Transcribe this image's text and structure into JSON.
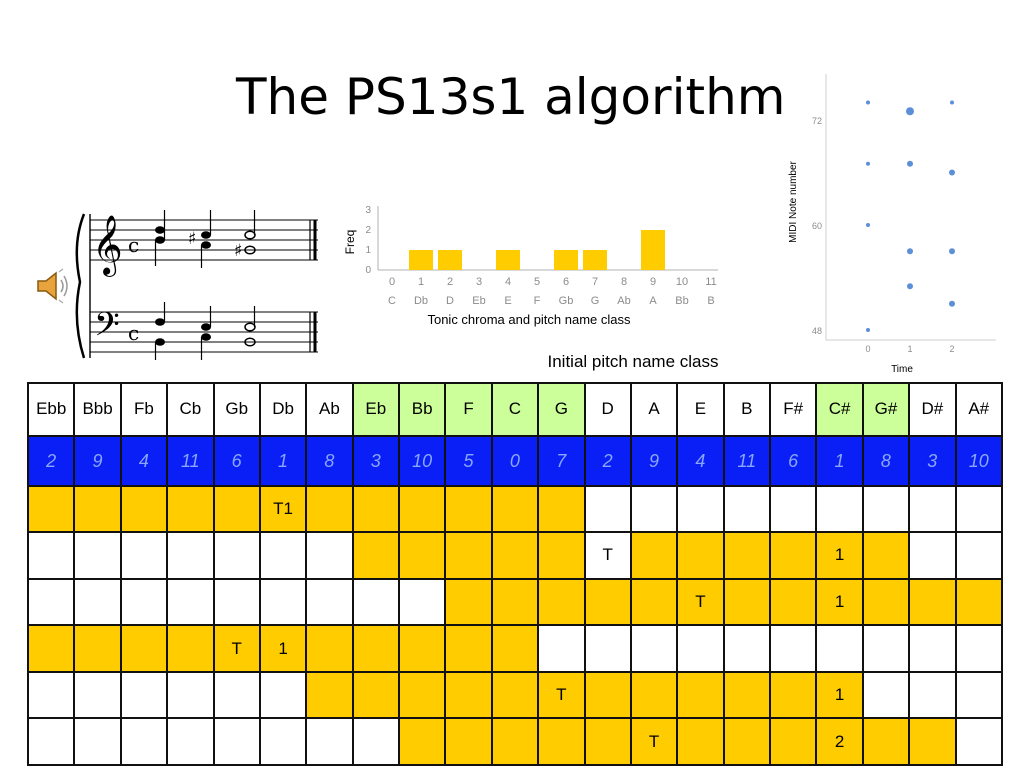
{
  "title": "The PS13s1 algorithm",
  "caption": "Initial pitch name class",
  "colors": {
    "fill": "#ffcc00",
    "header_green": "#ccff99",
    "index_row_bg": "#0a1ff5",
    "index_row_text": "#8aa7ff",
    "marker": "#5b8fd8"
  },
  "speaker_icon": "speaker-icon",
  "score": {
    "clefs": [
      "treble-clef",
      "bass-clef"
    ],
    "time_signature": "c"
  },
  "histogram": {
    "ylabel": "Freq",
    "xlabel": "Tonic chroma and pitch name class",
    "yticks": [
      "0",
      "1",
      "2",
      "3"
    ],
    "numbers": [
      "0",
      "1",
      "2",
      "3",
      "4",
      "5",
      "6",
      "7",
      "8",
      "9",
      "10",
      "11"
    ],
    "names": [
      "C",
      "Db",
      "D",
      "Eb",
      "E",
      "F",
      "Gb",
      "G",
      "Ab",
      "A",
      "Bb",
      "B"
    ]
  },
  "scatter": {
    "ylabel": "MIDI Note number",
    "xlabel": "Time",
    "yticks": [
      "72",
      "60",
      "48"
    ],
    "xticks": [
      "0",
      "1",
      "2"
    ]
  },
  "chart_data": [
    {
      "type": "bar",
      "categories": [
        "0",
        "1",
        "2",
        "3",
        "4",
        "5",
        "6",
        "7",
        "8",
        "9",
        "10",
        "11"
      ],
      "category_names": [
        "C",
        "Db",
        "D",
        "Eb",
        "E",
        "F",
        "Gb",
        "G",
        "Ab",
        "A",
        "Bb",
        "B"
      ],
      "values": [
        0,
        1,
        1,
        0,
        1,
        0,
        1,
        1,
        0,
        2,
        0,
        0
      ],
      "ylabel": "Freq",
      "xlabel": "Tonic chroma and pitch name class",
      "ylim": [
        0,
        3
      ]
    },
    {
      "type": "scatter",
      "xlabel": "Time",
      "ylabel": "MIDI Note number",
      "xlim": [
        -0.3,
        2.5
      ],
      "ylim": [
        47,
        75
      ],
      "points": [
        {
          "x": 0,
          "y": 74,
          "size": 1
        },
        {
          "x": 0,
          "y": 67,
          "size": 1
        },
        {
          "x": 0,
          "y": 60,
          "size": 1
        },
        {
          "x": 0,
          "y": 48,
          "size": 1
        },
        {
          "x": 1,
          "y": 73,
          "size": 2
        },
        {
          "x": 1,
          "y": 67,
          "size": 1.5
        },
        {
          "x": 1,
          "y": 57,
          "size": 1.5
        },
        {
          "x": 1,
          "y": 53,
          "size": 1.5
        },
        {
          "x": 2,
          "y": 74,
          "size": 1
        },
        {
          "x": 2,
          "y": 66,
          "size": 1.5
        },
        {
          "x": 2,
          "y": 57,
          "size": 1.5
        },
        {
          "x": 2,
          "y": 51,
          "size": 1.5
        }
      ]
    }
  ],
  "grid": {
    "headers": [
      "Ebb",
      "Bbb",
      "Fb",
      "Cb",
      "Gb",
      "Db",
      "Ab",
      "Eb",
      "Bb",
      "F",
      "C",
      "G",
      "D",
      "A",
      "E",
      "B",
      "F#",
      "C#",
      "G#",
      "D#",
      "A#"
    ],
    "green_columns": [
      7,
      8,
      9,
      10,
      11,
      17,
      18
    ],
    "index_numbers": [
      "2",
      "9",
      "4",
      "11",
      "6",
      "1",
      "8",
      "3",
      "10",
      "5",
      "0",
      "7",
      "2",
      "9",
      "4",
      "11",
      "6",
      "1",
      "8",
      "3",
      "10"
    ],
    "rows": [
      {
        "filled": [
          0,
          1,
          2,
          3,
          4,
          5,
          6,
          7,
          8,
          9,
          10,
          11
        ],
        "labels": {
          "5": "T1"
        }
      },
      {
        "filled": [
          7,
          8,
          9,
          10,
          11,
          13,
          14,
          15,
          16,
          17,
          18
        ],
        "labels": {
          "12": "T",
          "17": "1"
        }
      },
      {
        "filled": [
          9,
          10,
          11,
          12,
          13,
          14,
          15,
          16,
          17,
          18,
          19,
          20
        ],
        "labels": {
          "14": "T",
          "17": "1"
        }
      },
      {
        "filled": [
          0,
          1,
          2,
          3,
          4,
          5,
          6,
          7,
          8,
          9,
          10
        ],
        "labels": {
          "4": "T",
          "5": "1"
        }
      },
      {
        "filled": [
          6,
          7,
          8,
          9,
          10,
          11,
          12,
          13,
          14,
          15,
          16,
          17
        ],
        "labels": {
          "11": "T",
          "17": "1"
        }
      },
      {
        "filled": [
          8,
          9,
          10,
          11,
          12,
          13,
          14,
          15,
          16,
          17,
          18,
          19
        ],
        "labels": {
          "13": "T",
          "17": "2"
        }
      }
    ]
  }
}
